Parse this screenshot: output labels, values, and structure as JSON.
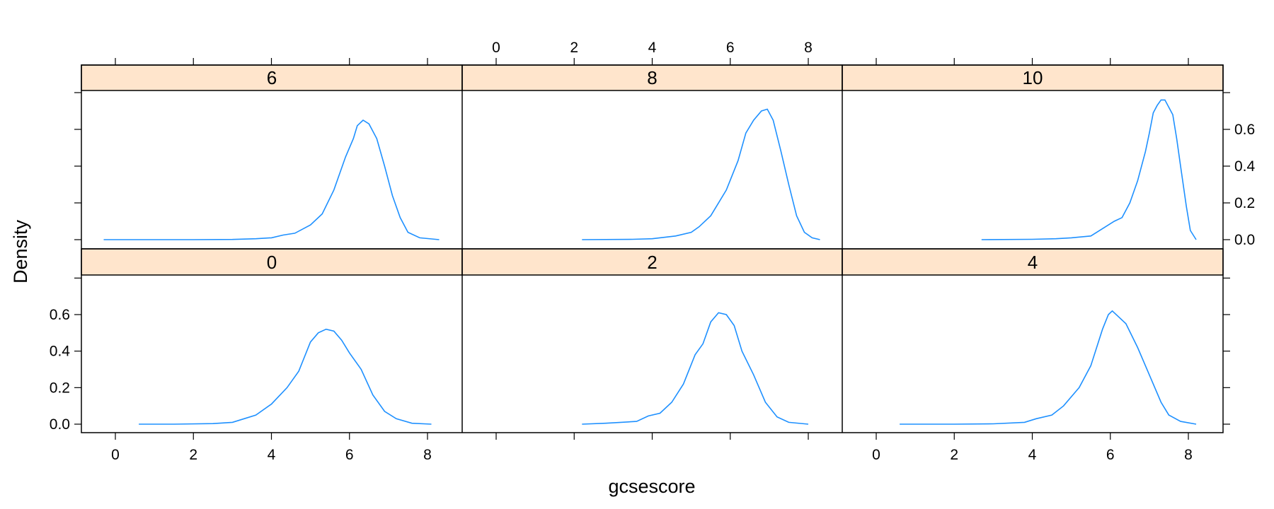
{
  "chart_data": {
    "type": "line",
    "subtype": "density trellis (lattice densityplot)",
    "xlabel": "gcsescore",
    "ylabel": "Density",
    "layout": {
      "columns": 3,
      "rows": 2,
      "strip_color": "#ffe5cc",
      "line_color": "#1e90ff",
      "grid": false
    },
    "x_ticks": [
      0,
      2,
      4,
      6,
      8
    ],
    "y_ticks": [
      0.0,
      0.2,
      0.4,
      0.6
    ],
    "y_tick_labels": [
      "0.0",
      "0.2",
      "0.4",
      "0.6"
    ],
    "xlim": [
      -0.9,
      8.9
    ],
    "ylim": [
      -0.05,
      0.8
    ],
    "panels": [
      {
        "label": "0",
        "row": "bottom",
        "col": 0,
        "peak_x": 5.4,
        "peak_y": 0.52,
        "points": [
          [
            0.6,
            0.0
          ],
          [
            1.5,
            0.0
          ],
          [
            2.5,
            0.003
          ],
          [
            3.0,
            0.01
          ],
          [
            3.3,
            0.03
          ],
          [
            3.6,
            0.05
          ],
          [
            4.0,
            0.11
          ],
          [
            4.4,
            0.2
          ],
          [
            4.7,
            0.29
          ],
          [
            5.0,
            0.45
          ],
          [
            5.2,
            0.5
          ],
          [
            5.4,
            0.52
          ],
          [
            5.6,
            0.51
          ],
          [
            5.8,
            0.46
          ],
          [
            6.0,
            0.39
          ],
          [
            6.3,
            0.3
          ],
          [
            6.6,
            0.16
          ],
          [
            6.9,
            0.07
          ],
          [
            7.2,
            0.03
          ],
          [
            7.6,
            0.005
          ],
          [
            8.1,
            0.0
          ]
        ]
      },
      {
        "label": "2",
        "row": "bottom",
        "col": 1,
        "peak_x": 5.8,
        "peak_y": 0.61,
        "points": [
          [
            2.2,
            0.0
          ],
          [
            2.8,
            0.005
          ],
          [
            3.2,
            0.01
          ],
          [
            3.6,
            0.015
          ],
          [
            3.9,
            0.045
          ],
          [
            4.2,
            0.06
          ],
          [
            4.5,
            0.12
          ],
          [
            4.8,
            0.22
          ],
          [
            5.1,
            0.38
          ],
          [
            5.3,
            0.44
          ],
          [
            5.5,
            0.56
          ],
          [
            5.7,
            0.61
          ],
          [
            5.9,
            0.6
          ],
          [
            6.1,
            0.54
          ],
          [
            6.3,
            0.4
          ],
          [
            6.6,
            0.27
          ],
          [
            6.9,
            0.12
          ],
          [
            7.2,
            0.04
          ],
          [
            7.5,
            0.01
          ],
          [
            8.0,
            0.0
          ]
        ]
      },
      {
        "label": "4",
        "row": "bottom",
        "col": 2,
        "peak_x": 6.05,
        "peak_y": 0.62,
        "points": [
          [
            0.6,
            0.0
          ],
          [
            2.0,
            0.0
          ],
          [
            3.0,
            0.002
          ],
          [
            3.8,
            0.01
          ],
          [
            4.1,
            0.03
          ],
          [
            4.5,
            0.05
          ],
          [
            4.8,
            0.1
          ],
          [
            5.2,
            0.2
          ],
          [
            5.5,
            0.32
          ],
          [
            5.8,
            0.52
          ],
          [
            5.95,
            0.6
          ],
          [
            6.05,
            0.62
          ],
          [
            6.2,
            0.59
          ],
          [
            6.4,
            0.55
          ],
          [
            6.7,
            0.42
          ],
          [
            7.0,
            0.27
          ],
          [
            7.3,
            0.12
          ],
          [
            7.5,
            0.05
          ],
          [
            7.8,
            0.015
          ],
          [
            8.2,
            0.0
          ]
        ]
      },
      {
        "label": "6",
        "row": "top",
        "col": 0,
        "peak_x": 6.35,
        "peak_y": 0.65,
        "points": [
          [
            -0.3,
            0.0
          ],
          [
            2.0,
            0.0
          ],
          [
            3.0,
            0.001
          ],
          [
            3.6,
            0.005
          ],
          [
            4.0,
            0.01
          ],
          [
            4.3,
            0.025
          ],
          [
            4.6,
            0.035
          ],
          [
            5.0,
            0.08
          ],
          [
            5.3,
            0.14
          ],
          [
            5.6,
            0.27
          ],
          [
            5.9,
            0.45
          ],
          [
            6.1,
            0.55
          ],
          [
            6.2,
            0.62
          ],
          [
            6.35,
            0.65
          ],
          [
            6.5,
            0.63
          ],
          [
            6.7,
            0.55
          ],
          [
            6.9,
            0.4
          ],
          [
            7.1,
            0.24
          ],
          [
            7.3,
            0.12
          ],
          [
            7.5,
            0.04
          ],
          [
            7.8,
            0.01
          ],
          [
            8.3,
            0.0
          ]
        ]
      },
      {
        "label": "8",
        "row": "top",
        "col": 1,
        "peak_x": 6.9,
        "peak_y": 0.71,
        "points": [
          [
            2.2,
            0.0
          ],
          [
            3.5,
            0.002
          ],
          [
            4.0,
            0.005
          ],
          [
            4.6,
            0.02
          ],
          [
            5.0,
            0.04
          ],
          [
            5.2,
            0.07
          ],
          [
            5.5,
            0.13
          ],
          [
            5.9,
            0.27
          ],
          [
            6.2,
            0.43
          ],
          [
            6.4,
            0.58
          ],
          [
            6.6,
            0.65
          ],
          [
            6.8,
            0.7
          ],
          [
            6.95,
            0.71
          ],
          [
            7.1,
            0.65
          ],
          [
            7.3,
            0.48
          ],
          [
            7.5,
            0.3
          ],
          [
            7.7,
            0.13
          ],
          [
            7.9,
            0.04
          ],
          [
            8.1,
            0.01
          ],
          [
            8.3,
            0.0
          ]
        ]
      },
      {
        "label": "10",
        "row": "top",
        "col": 2,
        "peak_x": 7.3,
        "peak_y": 0.76,
        "points": [
          [
            2.7,
            0.0
          ],
          [
            4.0,
            0.002
          ],
          [
            4.6,
            0.005
          ],
          [
            5.0,
            0.01
          ],
          [
            5.5,
            0.02
          ],
          [
            5.8,
            0.06
          ],
          [
            6.1,
            0.1
          ],
          [
            6.3,
            0.12
          ],
          [
            6.5,
            0.2
          ],
          [
            6.7,
            0.32
          ],
          [
            6.9,
            0.48
          ],
          [
            7.0,
            0.58
          ],
          [
            7.1,
            0.69
          ],
          [
            7.2,
            0.73
          ],
          [
            7.3,
            0.76
          ],
          [
            7.4,
            0.76
          ],
          [
            7.5,
            0.72
          ],
          [
            7.6,
            0.68
          ],
          [
            7.7,
            0.55
          ],
          [
            7.8,
            0.4
          ],
          [
            7.95,
            0.18
          ],
          [
            8.05,
            0.05
          ],
          [
            8.2,
            0.0
          ]
        ]
      }
    ]
  },
  "axes": {
    "x_title": "gcsescore",
    "y_title": "Density",
    "x_tick_labels": [
      "0",
      "2",
      "4",
      "6",
      "8"
    ],
    "y_tick_labels": [
      "0.0",
      "0.2",
      "0.4",
      "0.6"
    ]
  },
  "strips": {
    "top": [
      "6",
      "8",
      "10"
    ],
    "bottom": [
      "0",
      "2",
      "4"
    ]
  }
}
